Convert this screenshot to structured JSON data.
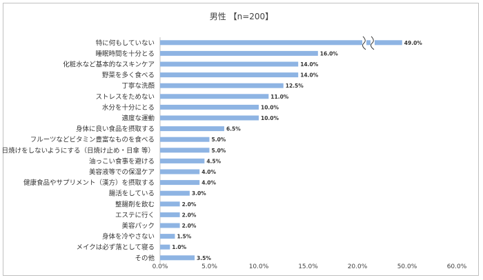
{
  "chart_data": {
    "type": "bar",
    "orientation": "horizontal",
    "title": "男性 【n=200】",
    "categories": [
      "特に何もしていない",
      "睡眠時間を十分とる",
      "化粧水など基本的なスキンケア",
      "野菜を多く食べる",
      "丁寧な洗顔",
      "ストレスをためない",
      "水分を十分にとる",
      "適度な運動",
      "身体に良い食品を摂取する",
      "フルーツなどビタミン豊富なものを食べる",
      "日焼けをしないようにする（日焼け止め・日傘 等）",
      "油っこい食事を避ける",
      "美容液等での保湿ケア",
      "健康食品やサプリメント（漢方）を摂取する",
      "腸活をしている",
      "整腸剤を飲む",
      "エステに行く",
      "美容パック",
      "身体を冷やさない",
      "メイクは必ず落として寝る",
      "その他"
    ],
    "values": [
      49.0,
      16.0,
      14.0,
      14.0,
      12.5,
      11.0,
      10.0,
      10.0,
      6.5,
      5.0,
      5.0,
      4.5,
      4.0,
      4.0,
      3.0,
      2.0,
      2.0,
      2.0,
      1.5,
      1.0,
      3.5
    ],
    "value_labels": [
      "49.0%",
      "16.0%",
      "14.0%",
      "14.0%",
      "12.5%",
      "11.0%",
      "10.0%",
      "10.0%",
      "6.5%",
      "5.0%",
      "5.0%",
      "4.5%",
      "4.0%",
      "4.0%",
      "3.0%",
      "2.0%",
      "2.0%",
      "2.0%",
      "1.5%",
      "1.0%",
      "3.5%"
    ],
    "xlim": [
      0,
      60
    ],
    "x_ticks": [
      "0.0%",
      "5.0%",
      "10.0%",
      "15.0%",
      "20.0%",
      "50.0%",
      "60.0%"
    ],
    "axis_break": [
      20,
      50
    ],
    "bar_color": "#8eb4e3",
    "grid": false
  }
}
